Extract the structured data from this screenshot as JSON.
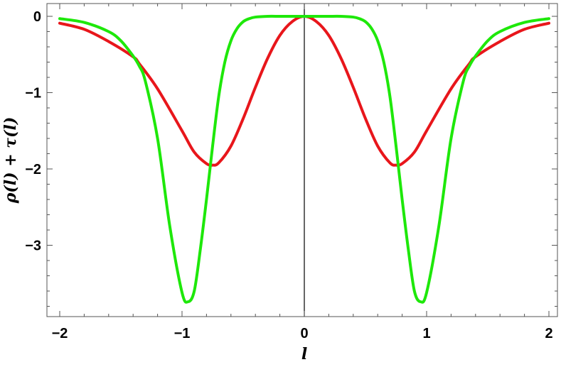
{
  "chart_data": {
    "type": "line",
    "title": "",
    "xlabel": "l",
    "ylabel": "ρ(l) + τ(l)",
    "xlim": [
      -2.0,
      2.0
    ],
    "ylim": [
      -4.0,
      0.1
    ],
    "grid": false,
    "x_ticks": [
      -2,
      -1,
      0,
      1,
      2
    ],
    "x_tick_labels": [
      "-2",
      "-1",
      "0",
      "1",
      "2"
    ],
    "y_ticks": [
      0,
      -1,
      -2,
      -3
    ],
    "y_tick_labels": [
      "0",
      "-1",
      "-2",
      "-3"
    ],
    "series": [
      {
        "color": "#e8161b",
        "x": [
          -2.0,
          -1.8,
          -1.6,
          -1.4,
          -1.35,
          -1.2,
          -1.0,
          -0.9,
          -0.8,
          -0.75,
          -0.7,
          -0.6,
          -0.5,
          -0.4,
          -0.3,
          -0.2,
          -0.1,
          0.0,
          0.1,
          0.2,
          0.3,
          0.4,
          0.5,
          0.6,
          0.7,
          0.75,
          0.8,
          0.9,
          1.0,
          1.2,
          1.35,
          1.4,
          1.6,
          1.8,
          2.0
        ],
        "y": [
          -0.09,
          -0.17,
          -0.33,
          -0.53,
          -0.62,
          -0.95,
          -1.5,
          -1.78,
          -1.93,
          -1.95,
          -1.92,
          -1.7,
          -1.34,
          -0.93,
          -0.55,
          -0.25,
          -0.07,
          0.0,
          -0.07,
          -0.25,
          -0.55,
          -0.93,
          -1.34,
          -1.7,
          -1.92,
          -1.95,
          -1.93,
          -1.78,
          -1.5,
          -0.95,
          -0.62,
          -0.53,
          -0.33,
          -0.17,
          -0.09
        ]
      },
      {
        "color": "#1ee80a",
        "x": [
          -2.0,
          -1.8,
          -1.6,
          -1.5,
          -1.4,
          -1.35,
          -1.3,
          -1.2,
          -1.1,
          -1.0,
          -0.95,
          -0.9,
          -0.85,
          -0.8,
          -0.75,
          -0.7,
          -0.65,
          -0.6,
          -0.55,
          -0.5,
          -0.45,
          -0.4,
          -0.3,
          -0.2,
          -0.1,
          0.0,
          0.1,
          0.2,
          0.3,
          0.4,
          0.45,
          0.5,
          0.55,
          0.6,
          0.65,
          0.7,
          0.75,
          0.8,
          0.85,
          0.9,
          0.95,
          1.0,
          1.1,
          1.2,
          1.3,
          1.35,
          1.4,
          1.5,
          1.6,
          1.8,
          2.0
        ],
        "y": [
          -0.03,
          -0.08,
          -0.2,
          -0.32,
          -0.52,
          -0.65,
          -0.85,
          -1.6,
          -2.75,
          -3.62,
          -3.74,
          -3.6,
          -3.05,
          -2.4,
          -1.7,
          -1.05,
          -0.6,
          -0.32,
          -0.16,
          -0.07,
          -0.03,
          -0.01,
          0.0,
          0.0,
          0.0,
          0.0,
          0.0,
          0.0,
          0.0,
          -0.01,
          -0.03,
          -0.07,
          -0.16,
          -0.32,
          -0.6,
          -1.05,
          -1.7,
          -2.4,
          -3.05,
          -3.6,
          -3.74,
          -3.62,
          -2.75,
          -1.6,
          -0.85,
          -0.65,
          -0.52,
          -0.32,
          -0.2,
          -0.08,
          -0.03
        ]
      }
    ]
  }
}
